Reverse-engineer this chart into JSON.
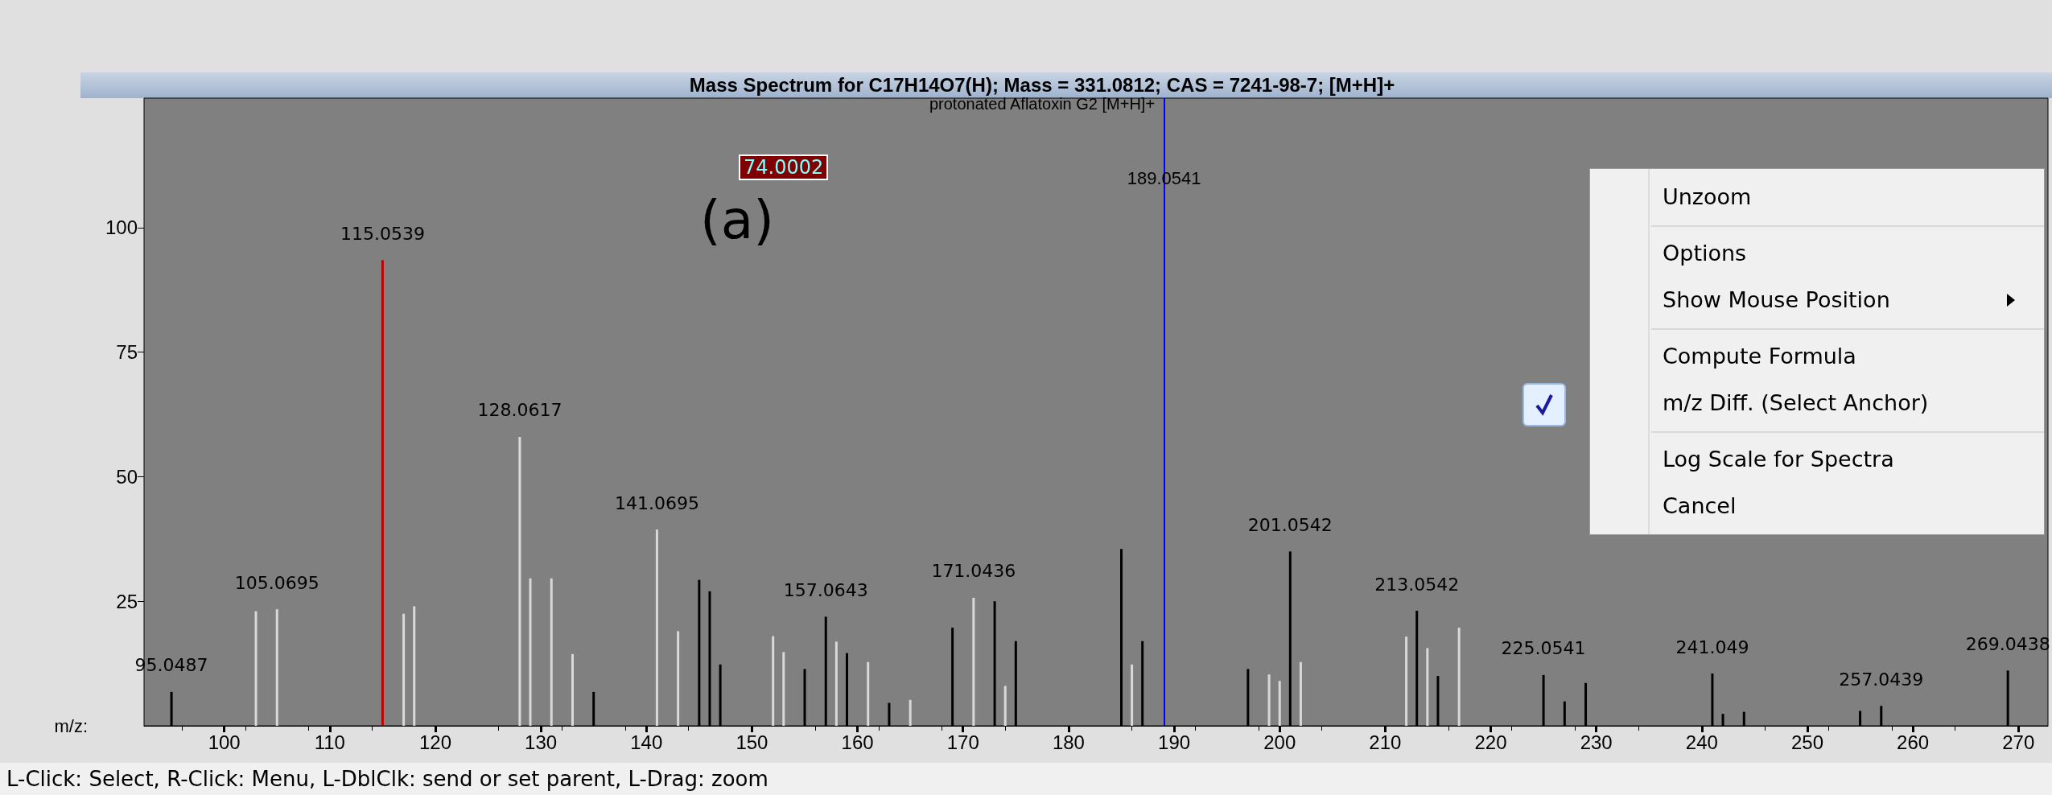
{
  "chart_data": {
    "type": "bar",
    "title": "Mass Spectrum for C17H14O7(H); Mass = 331.0812; CAS = 7241-98-7; [M+H]+",
    "subtitle": "protonated Aflatoxin G2 [M+H]+",
    "xlabel": "m/z:",
    "series": [
      {
        "color": "#d9d9d9",
        "x": [
          103,
          105,
          117,
          118,
          128,
          129,
          131,
          133,
          141,
          143,
          152,
          153,
          158,
          161,
          165,
          171,
          174,
          186,
          199,
          200,
          202,
          212,
          214,
          217
        ],
        "values": [
          23,
          23.4,
          22.5,
          24,
          58,
          29.6,
          29.6,
          14.4,
          39.4,
          19,
          18,
          14.8,
          16.9,
          12.8,
          5.2,
          25.7,
          8,
          12.3,
          10.3,
          9,
          12.8,
          17.9,
          15.6,
          19.7
        ]
      },
      {
        "color": "#000000",
        "colors": [
          "#000000",
          "#c00000",
          "#000000",
          "#000000",
          "#000000",
          "#000000",
          "#000000",
          "#000000",
          "#000000",
          "#000000",
          "#000000",
          "#000000",
          "#000000",
          "#000000",
          "#000000",
          "#000000",
          "#000000",
          "#000000",
          "#000000",
          "#000000",
          "#000000",
          "#000000",
          "#000000",
          "#000000",
          "#000000",
          "#000000",
          "#000000",
          "#000000"
        ],
        "x": [
          95,
          115,
          135,
          145,
          146,
          147,
          155,
          157,
          159,
          163,
          169,
          173,
          175,
          185,
          187,
          197,
          201,
          213,
          215,
          225,
          227,
          229,
          241,
          242,
          244,
          255,
          257,
          269
        ],
        "values": [
          6.8,
          93.5,
          6.8,
          29.3,
          27,
          12.3,
          11.4,
          21.9,
          14.6,
          4.6,
          19.7,
          25,
          17,
          35.5,
          17,
          11.4,
          35,
          23.1,
          10,
          10.2,
          4.9,
          8.6,
          10.5,
          2.4,
          2.8,
          3,
          4,
          11.1
        ]
      }
    ],
    "xlim": [
      92.4,
      272.8
    ],
    "xticks": [
      100,
      110,
      120,
      130,
      140,
      150,
      160,
      170,
      180,
      190,
      200,
      210,
      220,
      230,
      240,
      250,
      260,
      270
    ],
    "ylim": [
      0,
      126
    ],
    "yticks": [
      25,
      50,
      75,
      100
    ],
    "grid": false,
    "ref_lines": [
      {
        "axis": "x",
        "value": 189.0541,
        "label": "189.0541",
        "color": "#0000ff"
      }
    ],
    "annotations": [
      {
        "text": "95.0487",
        "x": 95,
        "y": 6.8
      },
      {
        "text": "105.0695",
        "x": 105,
        "y": 23.4
      },
      {
        "text": "115.0539",
        "x": 115,
        "y": 93.5
      },
      {
        "text": "128.0617",
        "x": 128,
        "y": 58
      },
      {
        "text": "141.0695",
        "x": 141,
        "y": 39.4
      },
      {
        "text": "157.0643",
        "x": 157,
        "y": 21.9
      },
      {
        "text": "171.0436",
        "x": 171,
        "y": 25.7
      },
      {
        "text": "201.0542",
        "x": 201,
        "y": 35
      },
      {
        "text": "213.0542",
        "x": 213,
        "y": 23.1
      },
      {
        "text": "225.0541",
        "x": 225,
        "y": 10.2
      },
      {
        "text": "241.049",
        "x": 241,
        "y": 10.5
      },
      {
        "text": "257.0439",
        "x": 257,
        "y": 4
      },
      {
        "text": "269.0438",
        "x": 269,
        "y": 11.1
      },
      "74.0002",
      "(a)",
      "L-Click: Select, R-Click: Menu, L-DblClk: send or set parent, L-Drag: zoom",
      "Unzoom",
      "Options",
      "Show Mouse Position",
      "Compute Formula",
      "m/z Diff. (Select Anchor)",
      "Log Scale for Spectra",
      "Cancel"
    ]
  }
}
